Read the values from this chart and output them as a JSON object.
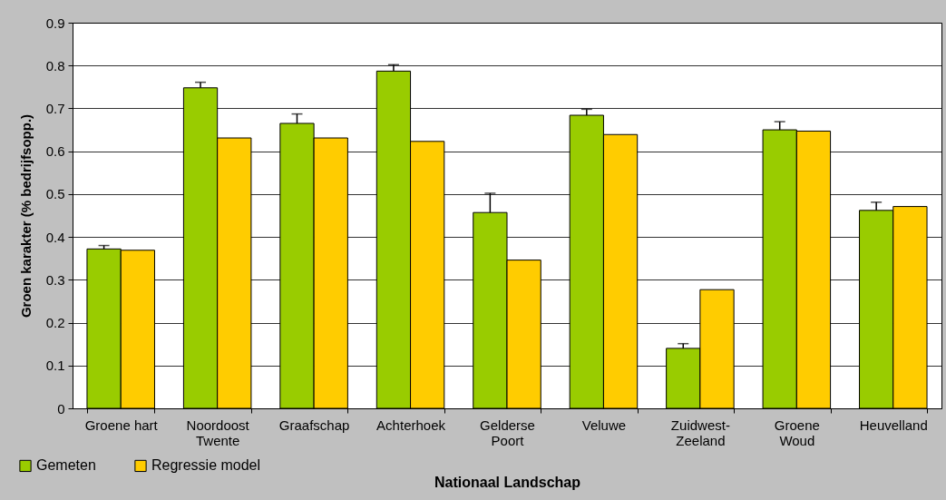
{
  "chart_data": {
    "type": "bar",
    "xlabel": "Nationaal Landschap",
    "ylabel": "Groen karakter (% bedrijfsopp.)",
    "categories": [
      "Groene hart",
      "Noordoost\nTwente",
      "Graafschap",
      "Achterhoek",
      "Gelderse\nPoort",
      "Veluwe",
      "Zuidwest-\nZeeland",
      "Groene\nWoud",
      "Heuvelland"
    ],
    "series": [
      {
        "name": "Gemeten",
        "color": "#99cc00",
        "values": [
          0.372,
          0.748,
          0.665,
          0.787,
          0.457,
          0.684,
          0.14,
          0.65,
          0.462
        ],
        "errors": [
          [
            0.372,
            0.38
          ],
          [
            0.748,
            0.761
          ],
          [
            0.665,
            0.687
          ],
          [
            0.787,
            0.802
          ],
          [
            0.457,
            0.502
          ],
          [
            0.684,
            0.698
          ],
          [
            0.14,
            0.151
          ],
          [
            0.65,
            0.669
          ],
          [
            0.462,
            0.481
          ]
        ]
      },
      {
        "name": "Regressie model",
        "color": "#ffcc00",
        "values": [
          0.369,
          0.631,
          0.631,
          0.623,
          0.346,
          0.639,
          0.277,
          0.647,
          0.471
        ]
      }
    ],
    "ylim": [
      0,
      0.9
    ],
    "yticks": [
      0,
      0.1,
      0.2,
      0.3,
      0.4,
      0.5,
      0.6,
      0.7,
      0.8,
      0.9
    ],
    "grid": "y",
    "legend": "bottom left"
  }
}
